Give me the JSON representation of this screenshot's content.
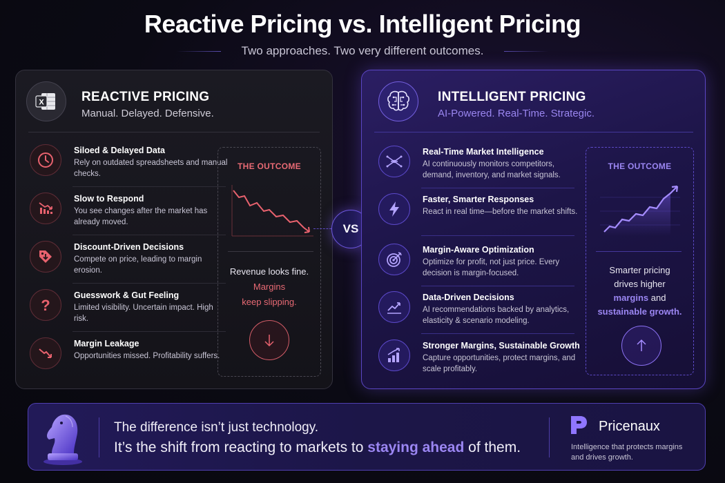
{
  "header": {
    "title": "Reactive Pricing vs. Intelligent Pricing",
    "subtitle": "Two approaches. Two very different outcomes."
  },
  "reactive": {
    "icon": "spreadsheet-icon",
    "title": "REACTIVE PRICING",
    "tagline": "Manual. Delayed. Defensive.",
    "items": [
      {
        "icon": "clock-icon",
        "title": "Siloed & Delayed Data",
        "desc": "Rely on outdated spreadsheets and manual checks."
      },
      {
        "icon": "declining-bars-icon",
        "title": "Slow to Respond",
        "desc": "You see changes after the market has already moved."
      },
      {
        "icon": "price-tag-icon",
        "title": "Discount-Driven Decisions",
        "desc": "Compete on price, leading to margin erosion."
      },
      {
        "icon": "question-icon",
        "title": "Guesswork & Gut Feeling",
        "desc": "Limited visibility. Uncertain impact. High risk."
      },
      {
        "icon": "downtrend-arrow-icon",
        "title": "Margin Leakage",
        "desc": "Opportunities missed. Profitability suffers."
      }
    ],
    "outcome": {
      "label": "THE OUTCOME",
      "line1": "Revenue looks fine.",
      "line2": "Margins",
      "line3": "keep slipping.",
      "arrow": "down-arrow-icon"
    }
  },
  "vs": "VS",
  "intelligent": {
    "icon": "brain-circuit-icon",
    "title": "INTELLIGENT PRICING",
    "tagline": "AI-Powered. Real-Time. Strategic.",
    "items": [
      {
        "icon": "network-icon",
        "title": "Real-Time Market Intelligence",
        "desc": "AI continuously monitors competitors, demand, inventory, and market signals."
      },
      {
        "icon": "lightning-icon",
        "title": "Faster, Smarter Responses",
        "desc": "React in real time—before the market shifts."
      },
      {
        "icon": "target-icon",
        "title": "Margin-Aware Optimization",
        "desc": "Optimize for profit, not just price. Every decision is margin-focused."
      },
      {
        "icon": "trend-line-icon",
        "title": "Data-Driven Decisions",
        "desc": "AI recommendations backed by analytics, elasticity & scenario modeling."
      },
      {
        "icon": "growth-bars-icon",
        "title": "Stronger Margins, Sustainable Growth",
        "desc": "Capture opportunities, protect margins, and scale profitably."
      }
    ],
    "outcome": {
      "label": "THE OUTCOME",
      "line1": "Smarter pricing",
      "line2": "drives higher",
      "line3a": "margins",
      "line3b": " and",
      "line4": "sustainable growth.",
      "arrow": "up-arrow-icon"
    }
  },
  "banner": {
    "icon": "chess-knight-icon",
    "line1": "The difference isn’t just technology.",
    "line2a": "It’s the shift from reacting to markets to ",
    "line2b": "staying ahead",
    "line2c": " of them.",
    "brand_name": "Pricenaux",
    "brand_tagline": "Intelligence that protects margins and drives growth."
  },
  "colors": {
    "reactive_accent": "#e86a74",
    "intelligent_accent": "#9b86f2",
    "background": "#0b0a14"
  }
}
